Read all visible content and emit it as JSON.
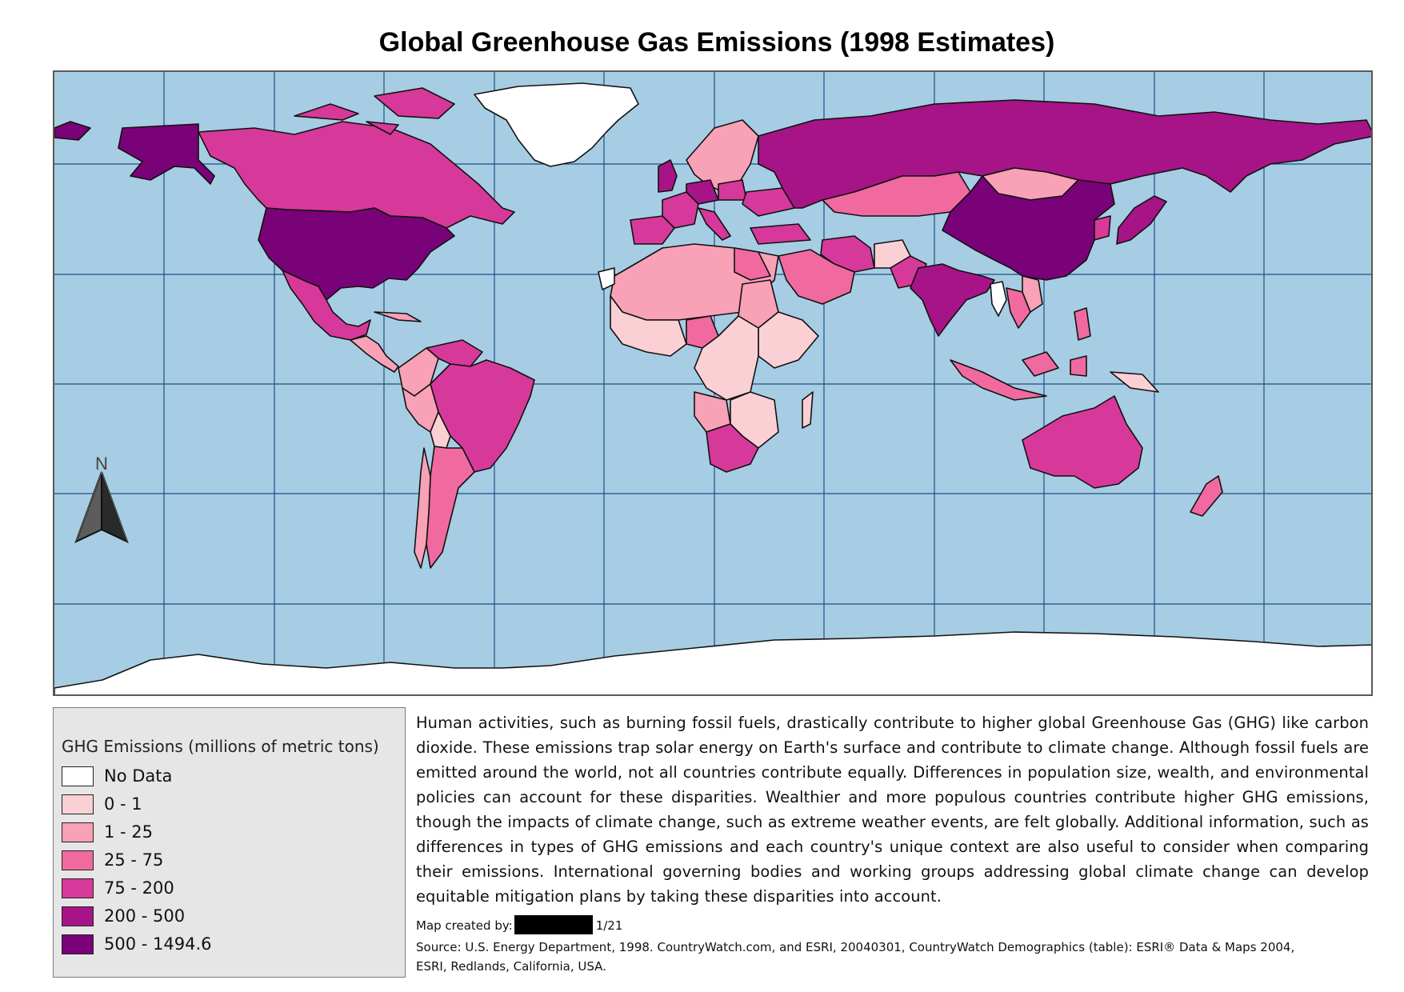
{
  "title": "Global Greenhouse Gas Emissions (1998 Estimates)",
  "colors": {
    "ocean": "#a6cde3",
    "graticule": "#1f4f86",
    "outline": "#111111",
    "no_data": "#ffffff",
    "c0_1": "#fbd0d4",
    "c1_25": "#f8a1b7",
    "c25_75": "#f06aa0",
    "c75_200": "#d7399a",
    "c200_500": "#a61487",
    "c500_plus": "#7a0278"
  },
  "north_arrow": {
    "label": "N",
    "icon": "north-arrow-icon"
  },
  "legend": {
    "title": "GHG Emissions (millions of metric tons)",
    "items": [
      {
        "label": "No Data",
        "color": "#ffffff"
      },
      {
        "label": "0 - 1",
        "color": "#fbd0d4"
      },
      {
        "label": "1 - 25",
        "color": "#f8a1b7"
      },
      {
        "label": "25 - 75",
        "color": "#f06aa0"
      },
      {
        "label": "75 - 200",
        "color": "#d7399a"
      },
      {
        "label": "200 - 500",
        "color": "#a61487"
      },
      {
        "label": "500 - 1494.6",
        "color": "#7a0278"
      }
    ]
  },
  "description": "Human activities, such as burning fossil fuels, drastically contribute to higher global Greenhouse Gas (GHG) like carbon dioxide. These emissions trap solar energy on Earth's surface and contribute to climate change.  Although fossil fuels are emitted around the world, not all countries contribute equally.  Differences in population size, wealth, and environmental policies can account for these disparities. Wealthier and more populous countries contribute higher GHG emissions, though the impacts of climate change, such as extreme weather events, are felt globally. Additional information, such as differences in types of GHG emissions and each country's unique context are also useful to consider when comparing their emissions. International governing bodies and working groups addressing global climate change can develop equitable mitigation plans by taking these disparities into account.",
  "credit": {
    "prefix": "Map created by:",
    "date": "1/21"
  },
  "source": "Source: U.S. Energy Department, 1998. CountryWatch.com, and ESRI, 20040301, CountryWatch Demographics (table): ESRI® Data & Maps 2004, ESRI, Redlands, California, USA."
}
